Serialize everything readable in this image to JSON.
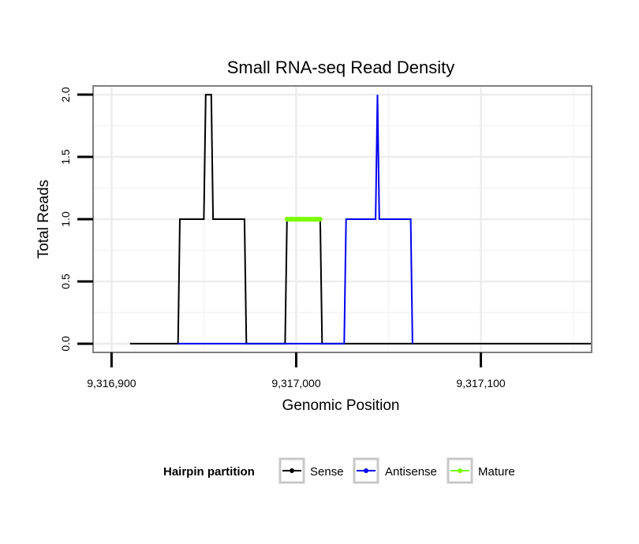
{
  "chart_data": {
    "type": "line",
    "title": "Small RNA-seq Read Density",
    "xlabel": "Genomic Position",
    "ylabel": "Total Reads",
    "xlim": [
      9316890,
      9317160
    ],
    "ylim": [
      -0.07,
      2.07
    ],
    "x_ticks": [
      9316900,
      9317000,
      9317100
    ],
    "x_tick_labels": [
      "9,316,900",
      "9,317,000",
      "9,317,100"
    ],
    "y_ticks": [
      0.0,
      0.5,
      1.0,
      1.5,
      2.0
    ],
    "y_tick_labels": [
      "0.0",
      "0.5",
      "1.0",
      "1.5",
      "2.0"
    ],
    "grid": true,
    "legend": {
      "title": "Hairpin partition",
      "position": "bottom",
      "entries": [
        "Sense",
        "Antisense",
        "Mature"
      ]
    },
    "series": [
      {
        "name": "Sense",
        "color": "#000000",
        "x": [
          9316910,
          9316936,
          9316937,
          9316950,
          9316951,
          9316954,
          9316955,
          9316972,
          9316973,
          9316994,
          9316995,
          9317013,
          9317014,
          9317160
        ],
        "y": [
          0,
          0,
          1,
          1,
          2,
          2,
          1,
          1,
          0,
          0,
          1,
          1,
          0,
          0
        ]
      },
      {
        "name": "Antisense",
        "color": "#0000ee",
        "x": [
          9316936,
          9317026,
          9317027,
          9317043,
          9317044,
          9317045,
          9317062,
          9317063
        ],
        "y": [
          0,
          0,
          1,
          1,
          2,
          1,
          1,
          0
        ]
      },
      {
        "name": "Mature",
        "color": "#7cfc00",
        "x": [
          9316995,
          9317013
        ],
        "y": [
          1,
          1
        ]
      }
    ]
  }
}
